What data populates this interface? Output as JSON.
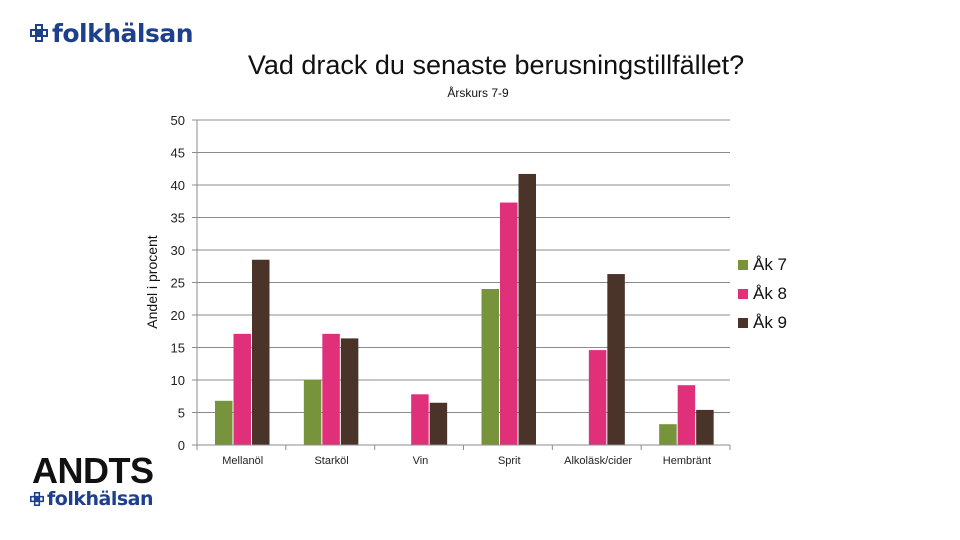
{
  "branding": {
    "logo_top": "folkhälsan",
    "logo_bottom_title": "ANDTS",
    "logo_bottom": "folkhälsan",
    "brand_color": "#1d3f8c"
  },
  "chart_data": {
    "type": "bar",
    "title": "Vad drack du senaste berusningstillfället?",
    "subtitle": "Årskurs 7-9",
    "ylabel": "Andel i procent",
    "xlabel": "",
    "categories": [
      "Mellanöl",
      "Starköl",
      "Vin",
      "Sprit",
      "Alkoläsk/cider",
      "Hembränt"
    ],
    "series": [
      {
        "name": "Åk 7",
        "color": "#77933c",
        "values": [
          6.8,
          10.0,
          0,
          24.0,
          0,
          3.2
        ]
      },
      {
        "name": "Åk 8",
        "color": "#e0307a",
        "values": [
          17.1,
          17.1,
          7.8,
          37.3,
          14.6,
          9.2
        ]
      },
      {
        "name": "Åk 9",
        "color": "#4a3329",
        "values": [
          28.5,
          16.4,
          6.5,
          41.7,
          26.3,
          5.4
        ]
      }
    ],
    "ylim": [
      0,
      50
    ],
    "yticks": [
      0,
      5,
      10,
      15,
      20,
      25,
      30,
      35,
      40,
      45,
      50
    ],
    "grid": true,
    "legend": "right"
  }
}
